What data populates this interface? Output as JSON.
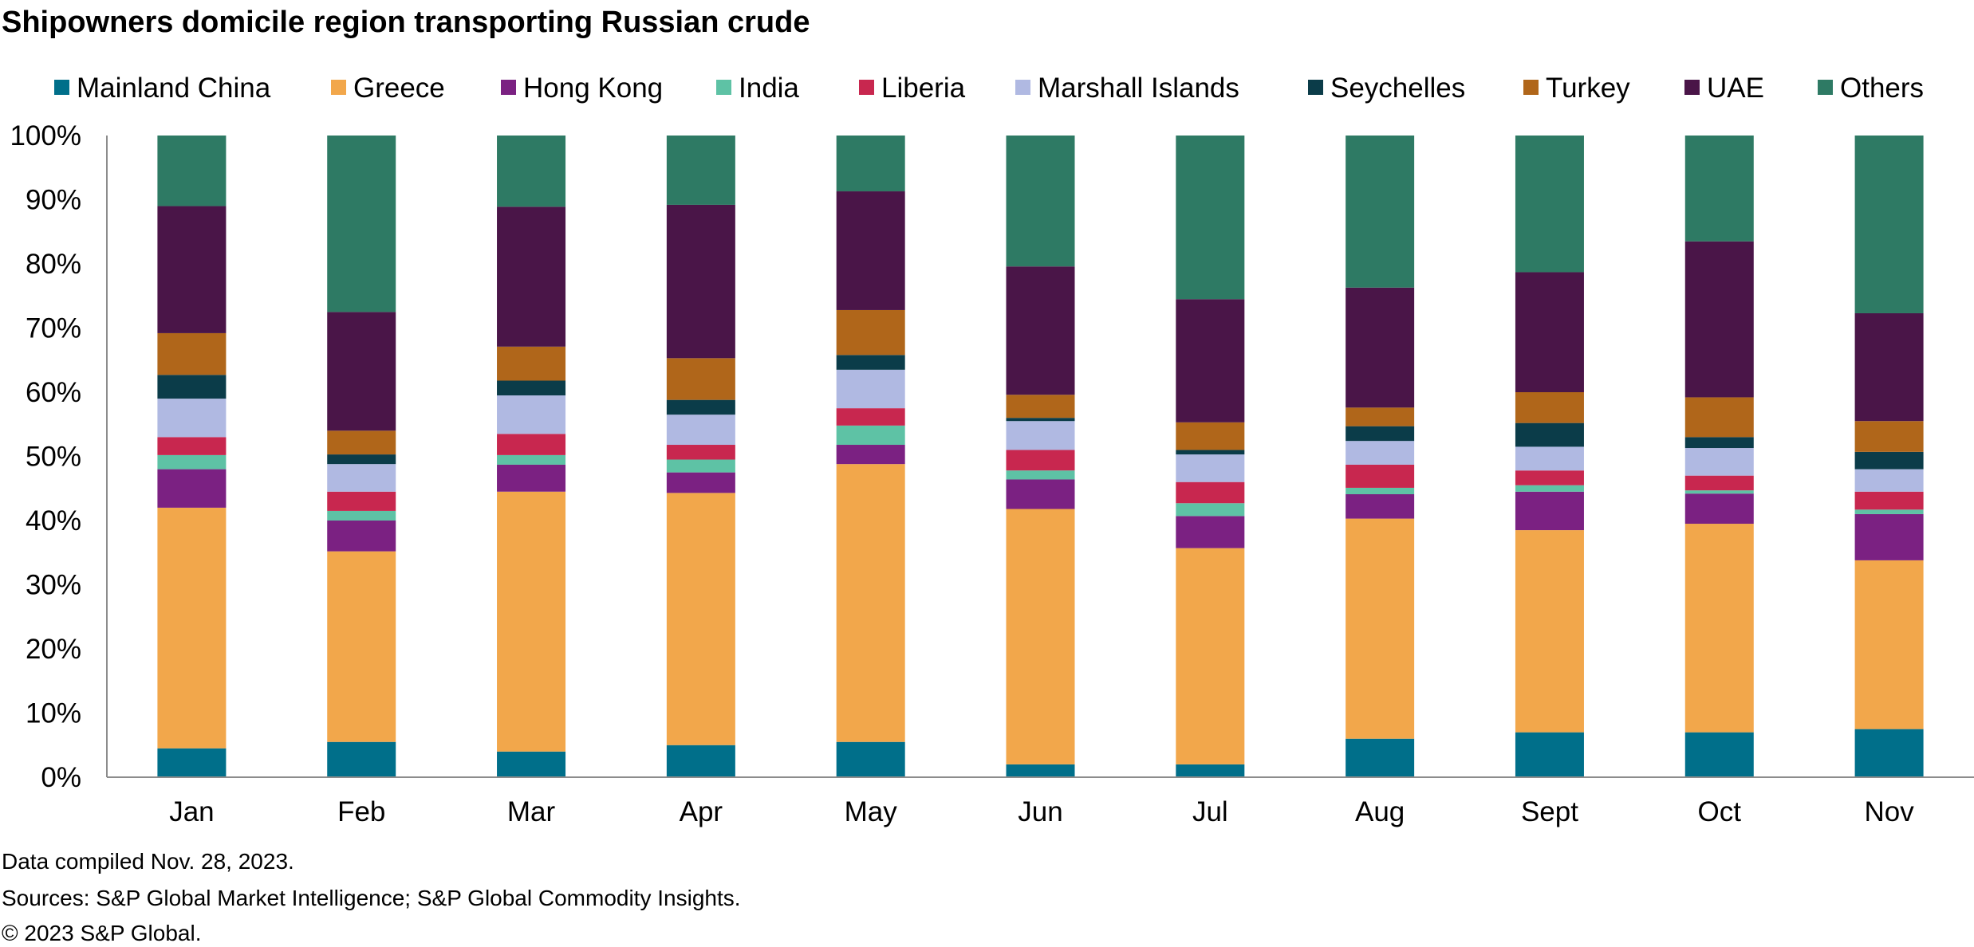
{
  "chart_data": {
    "type": "bar",
    "stacked": true,
    "title": "Shipowners domicile region transporting Russian crude",
    "xlabel": "",
    "ylabel": "",
    "ylim": [
      0,
      100
    ],
    "yticks": [
      0,
      10,
      20,
      30,
      40,
      50,
      60,
      70,
      80,
      90,
      100
    ],
    "ytick_labels": [
      "0%",
      "10%",
      "20%",
      "30%",
      "40%",
      "50%",
      "60%",
      "70%",
      "80%",
      "90%",
      "100%"
    ],
    "grid": false,
    "legend_position": "top",
    "categories": [
      "Jan",
      "Feb",
      "Mar",
      "Apr",
      "May",
      "Jun",
      "Jul",
      "Aug",
      "Sept",
      "Oct",
      "Nov"
    ],
    "series": [
      {
        "name": "Mainland China",
        "color": "#006f8a",
        "values": [
          4.5,
          5.5,
          4.0,
          5.0,
          5.5,
          2.0,
          2.0,
          6.0,
          7.0,
          7.0,
          7.5
        ]
      },
      {
        "name": "Greece",
        "color": "#f2a74b",
        "values": [
          37.5,
          29.7,
          40.5,
          39.3,
          43.3,
          39.8,
          33.7,
          34.3,
          31.5,
          32.5,
          26.3
        ]
      },
      {
        "name": "Hong Kong",
        "color": "#7b2182",
        "values": [
          6.0,
          4.8,
          4.2,
          3.2,
          3.0,
          4.6,
          5.0,
          3.8,
          6.0,
          4.7,
          7.2
        ]
      },
      {
        "name": "India",
        "color": "#5ec2a5",
        "values": [
          2.2,
          1.5,
          1.5,
          2.0,
          3.0,
          1.4,
          2.0,
          1.0,
          1.0,
          0.5,
          0.7
        ]
      },
      {
        "name": "Liberia",
        "color": "#c8274f",
        "values": [
          2.8,
          3.0,
          3.3,
          2.3,
          2.7,
          3.2,
          3.3,
          3.6,
          2.3,
          2.3,
          2.8
        ]
      },
      {
        "name": "Marshall Islands",
        "color": "#b0b9e2",
        "values": [
          6.0,
          4.3,
          6.0,
          4.7,
          6.0,
          4.5,
          4.3,
          3.7,
          3.7,
          4.3,
          3.5
        ]
      },
      {
        "name": "Seychelles",
        "color": "#0b3c49",
        "values": [
          3.7,
          1.5,
          2.3,
          2.3,
          2.3,
          0.5,
          0.7,
          2.3,
          3.7,
          1.7,
          2.7
        ]
      },
      {
        "name": "Turkey",
        "color": "#b0661a",
        "values": [
          6.5,
          3.7,
          5.3,
          6.5,
          7.0,
          3.6,
          4.3,
          2.9,
          4.8,
          6.2,
          4.8
        ]
      },
      {
        "name": "UAE",
        "color": "#4a1548",
        "values": [
          19.8,
          18.5,
          21.8,
          23.9,
          18.5,
          20.0,
          19.2,
          18.7,
          18.7,
          24.3,
          16.8
        ]
      },
      {
        "name": "Others",
        "color": "#2e7a64",
        "values": [
          11.0,
          27.5,
          11.1,
          10.8,
          8.7,
          20.4,
          25.5,
          23.7,
          21.3,
          16.5,
          27.7
        ]
      }
    ]
  },
  "footer": {
    "line1": "Data compiled Nov. 28, 2023.",
    "line2": "Sources: S&P Global Market Intelligence; S&P Global Commodity Insights.",
    "line3": "© 2023 S&P Global."
  }
}
